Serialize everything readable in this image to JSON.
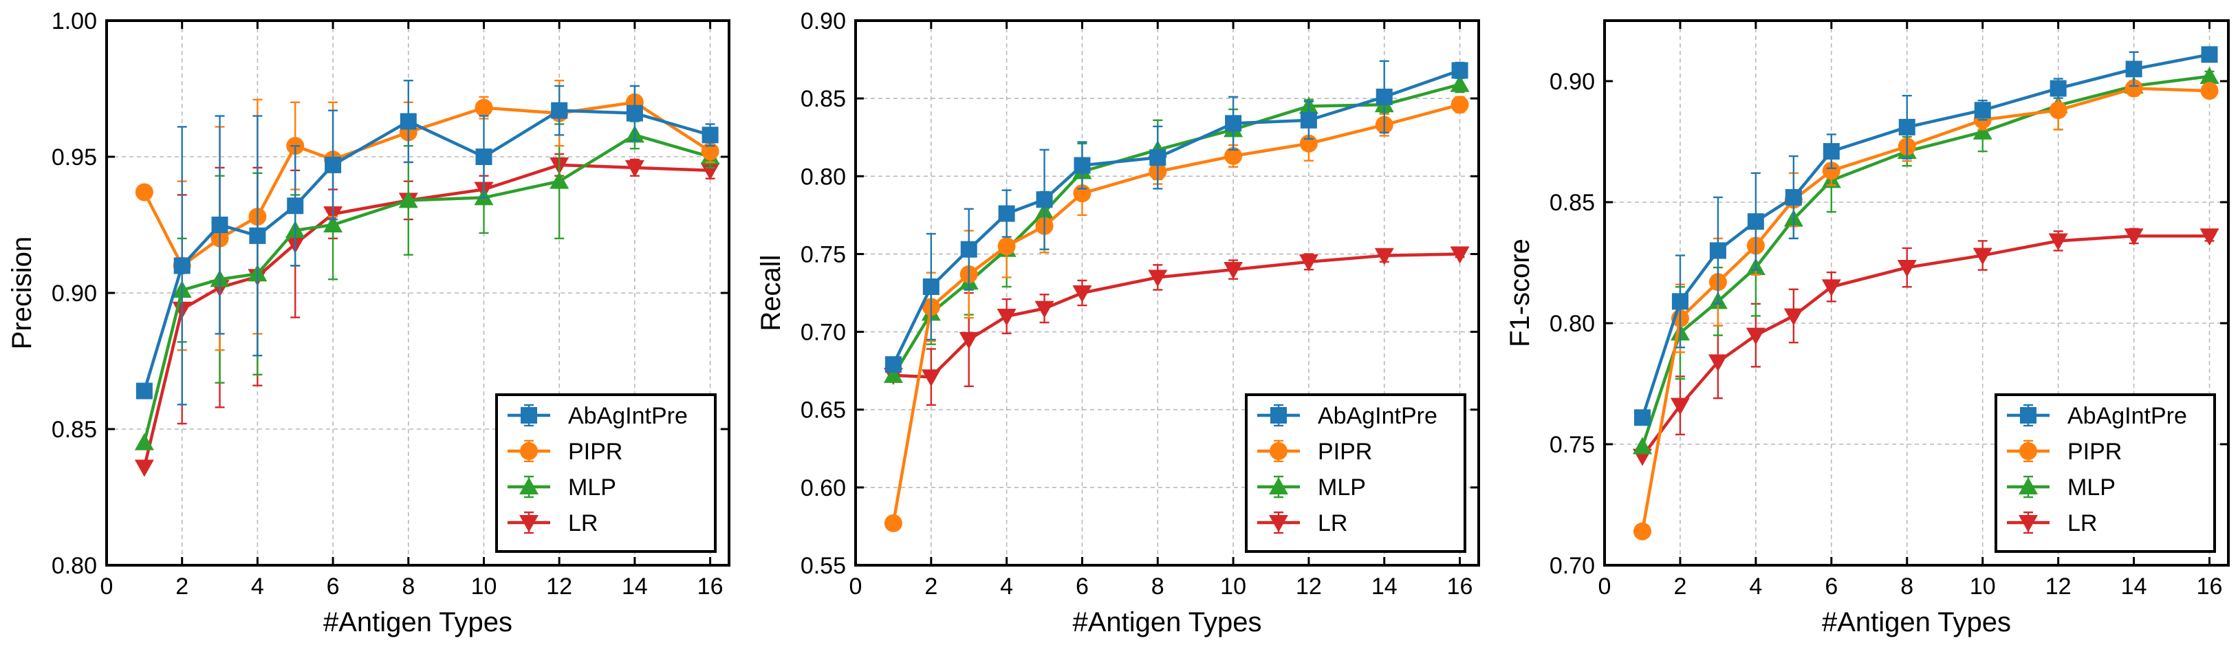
{
  "colors": {
    "AbAgIntPre": "#1f77b4",
    "PIPR": "#ff7f0e",
    "MLP": "#2ca02c",
    "LR": "#d62728"
  },
  "chart_data": [
    {
      "type": "line",
      "title": "",
      "xlabel": "#Antigen Types",
      "ylabel": "Precision",
      "xlim": [
        0,
        16.5
      ],
      "ylim": [
        0.8,
        1.0
      ],
      "xticks": [
        0,
        2,
        4,
        6,
        8,
        10,
        12,
        14,
        16
      ],
      "xtick_labels": [
        "0",
        "2",
        "4",
        "6",
        "8",
        "10",
        "12",
        "14",
        "16"
      ],
      "yticks": [
        0.8,
        0.85,
        0.9,
        0.95,
        1.0
      ],
      "ytick_labels": [
        "0.80",
        "0.85",
        "0.90",
        "0.95",
        "1.00"
      ],
      "grid": true,
      "legend_position": "bottom-right",
      "x": [
        1,
        2,
        3,
        4,
        5,
        6,
        8,
        10,
        12,
        14,
        16
      ],
      "series": [
        {
          "name": "AbAgIntPre",
          "marker": "square",
          "values": [
            0.864,
            0.91,
            0.925,
            0.921,
            0.932,
            0.947,
            0.963,
            0.95,
            0.967,
            0.966,
            0.958
          ],
          "errors": [
            0,
            0.051,
            0.04,
            0.044,
            0.022,
            0.02,
            0.015,
            0.015,
            0.009,
            0.01,
            0.004
          ]
        },
        {
          "name": "PIPR",
          "marker": "circle",
          "values": [
            0.937,
            0.91,
            0.92,
            0.928,
            0.954,
            0.949,
            0.959,
            0.968,
            0.966,
            0.97,
            0.952
          ],
          "errors": [
            0,
            0.031,
            0.041,
            0.043,
            0.016,
            0.021,
            0.011,
            0.004,
            0.012,
            0.006,
            0.004
          ]
        },
        {
          "name": "MLP",
          "marker": "triangle-up",
          "values": [
            0.845,
            0.901,
            0.905,
            0.907,
            0.923,
            0.925,
            0.934,
            0.935,
            0.941,
            0.958,
            0.95
          ],
          "errors": [
            0,
            0.019,
            0.038,
            0.037,
            0.013,
            0.02,
            0.02,
            0.013,
            0.021,
            0.005,
            0.004
          ]
        },
        {
          "name": "LR",
          "marker": "triangle-down",
          "values": [
            0.836,
            0.894,
            0.902,
            0.906,
            0.918,
            0.929,
            0.934,
            0.938,
            0.947,
            0.946,
            0.945
          ],
          "errors": [
            0,
            0.042,
            0.044,
            0.04,
            0.027,
            0.009,
            0.007,
            0.005,
            0.004,
            0.003,
            0.003
          ]
        }
      ]
    },
    {
      "type": "line",
      "title": "",
      "xlabel": "#Antigen Types",
      "ylabel": "Recall",
      "xlim": [
        0,
        16.5
      ],
      "ylim": [
        0.55,
        0.9
      ],
      "xticks": [
        0,
        2,
        4,
        6,
        8,
        10,
        12,
        14,
        16
      ],
      "xtick_labels": [
        "0",
        "2",
        "4",
        "6",
        "8",
        "10",
        "12",
        "14",
        "16"
      ],
      "yticks": [
        0.55,
        0.6,
        0.65,
        0.7,
        0.75,
        0.8,
        0.85,
        0.9
      ],
      "ytick_labels": [
        "0.55",
        "0.60",
        "0.65",
        "0.70",
        "0.75",
        "0.80",
        "0.85",
        "0.90"
      ],
      "grid": true,
      "legend_position": "bottom-right",
      "x": [
        1,
        2,
        3,
        4,
        5,
        6,
        8,
        10,
        12,
        14,
        16
      ],
      "series": [
        {
          "name": "AbAgIntPre",
          "marker": "square",
          "values": [
            0.679,
            0.729,
            0.753,
            0.776,
            0.785,
            0.807,
            0.812,
            0.834,
            0.836,
            0.851,
            0.868
          ],
          "errors": [
            0,
            0.034,
            0.026,
            0.015,
            0.032,
            0.015,
            0.02,
            0.017,
            0.012,
            0.023,
            0.005
          ]
        },
        {
          "name": "PIPR",
          "marker": "circle",
          "values": [
            0.577,
            0.716,
            0.737,
            0.755,
            0.768,
            0.789,
            0.803,
            0.813,
            0.821,
            0.833,
            0.846
          ],
          "errors": [
            0,
            0.022,
            0.028,
            0.02,
            0.017,
            0.014,
            0.008,
            0.007,
            0.011,
            0.007,
            0.005
          ]
        },
        {
          "name": "MLP",
          "marker": "triangle-up",
          "values": [
            0.672,
            0.712,
            0.732,
            0.753,
            0.777,
            0.803,
            0.817,
            0.83,
            0.845,
            0.846,
            0.859
          ],
          "errors": [
            0,
            0.02,
            0.021,
            0.024,
            0.013,
            0.018,
            0.019,
            0.013,
            0.004,
            0.005,
            0.005
          ]
        },
        {
          "name": "LR",
          "marker": "triangle-down",
          "values": [
            0.672,
            0.671,
            0.695,
            0.71,
            0.715,
            0.725,
            0.735,
            0.74,
            0.745,
            0.749,
            0.75
          ],
          "errors": [
            0,
            0.018,
            0.03,
            0.011,
            0.009,
            0.008,
            0.008,
            0.006,
            0.005,
            0.004,
            0.002
          ]
        }
      ]
    },
    {
      "type": "line",
      "title": "",
      "xlabel": "#Antigen Types",
      "ylabel": "F1-score",
      "xlim": [
        0,
        16.5
      ],
      "ylim": [
        0.7,
        0.925
      ],
      "xticks": [
        0,
        2,
        4,
        6,
        8,
        10,
        12,
        14,
        16
      ],
      "xtick_labels": [
        "0",
        "2",
        "4",
        "6",
        "8",
        "10",
        "12",
        "14",
        "16"
      ],
      "yticks": [
        0.7,
        0.75,
        0.8,
        0.85,
        0.9
      ],
      "ytick_labels": [
        "0.70",
        "0.75",
        "0.80",
        "0.85",
        "0.90"
      ],
      "grid": true,
      "legend_position": "bottom-right",
      "x": [
        1,
        2,
        3,
        4,
        5,
        6,
        8,
        10,
        12,
        14,
        16
      ],
      "series": [
        {
          "name": "AbAgIntPre",
          "marker": "square",
          "values": [
            0.761,
            0.809,
            0.83,
            0.842,
            0.852,
            0.871,
            0.881,
            0.888,
            0.897,
            0.905,
            0.911
          ],
          "errors": [
            0,
            0.019,
            0.022,
            0.02,
            0.017,
            0.007,
            0.013,
            0.004,
            0.004,
            0.007,
            0.002
          ]
        },
        {
          "name": "PIPR",
          "marker": "circle",
          "values": [
            0.714,
            0.802,
            0.817,
            0.832,
            0.851,
            0.863,
            0.873,
            0.884,
            0.888,
            0.897,
            0.896
          ],
          "errors": [
            0,
            0.014,
            0.018,
            0.012,
            0.011,
            0.006,
            0.006,
            0.004,
            0.008,
            0.003,
            0.002
          ]
        },
        {
          "name": "MLP",
          "marker": "triangle-up",
          "values": [
            0.749,
            0.796,
            0.809,
            0.823,
            0.843,
            0.859,
            0.871,
            0.879,
            0.89,
            0.898,
            0.902
          ],
          "errors": [
            0,
            0.019,
            0.014,
            0.02,
            0.008,
            0.013,
            0.006,
            0.008,
            0.01,
            0.002,
            0.002
          ]
        },
        {
          "name": "LR",
          "marker": "triangle-down",
          "values": [
            0.745,
            0.766,
            0.784,
            0.795,
            0.803,
            0.815,
            0.823,
            0.828,
            0.834,
            0.836,
            0.836
          ],
          "errors": [
            0,
            0.012,
            0.015,
            0.013,
            0.011,
            0.006,
            0.008,
            0.006,
            0.004,
            0.003,
            0.002
          ]
        }
      ]
    }
  ]
}
